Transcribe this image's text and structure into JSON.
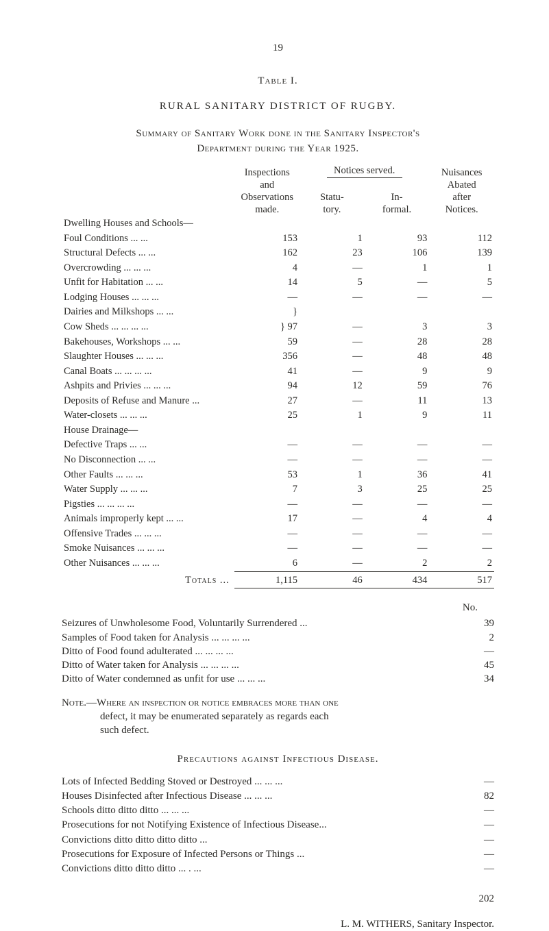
{
  "page_number": "19",
  "table_label": "Table I.",
  "district": "RURAL  SANITARY  DISTRICT  OF  RUGBY.",
  "summary1": "Summary of Sanitary Work done in the Sanitary Inspector's",
  "summary2": "Department during the Year 1925.",
  "headers": {
    "col2_line1": "Inspections",
    "col2_line2": "and",
    "col2_line3": "Observations",
    "col2_line4": "made.",
    "notices_top": "Notices served.",
    "col3_line1": "Statu-",
    "col3_line2": "tory.",
    "col4_line1": "In-",
    "col4_line2": "formal.",
    "col5_line1": "Nuisances",
    "col5_line2": "Abated",
    "col5_line3": "after",
    "col5_line4": "Notices."
  },
  "rows": [
    {
      "label": "Dwelling Houses and Schools—",
      "obs": "",
      "st": "",
      "inf": "",
      "nu": "",
      "indent": 0
    },
    {
      "label": "Foul Conditions        ...      ...",
      "obs": "153",
      "st": "1",
      "inf": "93",
      "nu": "112",
      "indent": 1
    },
    {
      "label": "Structural Defects       ...   ...",
      "obs": "162",
      "st": "23",
      "inf": "106",
      "nu": "139",
      "indent": 1
    },
    {
      "label": "Overcrowding   ...      ...    ...",
      "obs": "4",
      "st": "—",
      "inf": "1",
      "nu": "1",
      "indent": 1
    },
    {
      "label": "Unfit for Habitation     ...   ...",
      "obs": "14",
      "st": "5",
      "inf": "—",
      "nu": "5",
      "indent": 1
    },
    {
      "label": "Lodging Houses       ...     ...   ...",
      "obs": "—",
      "st": "—",
      "inf": "—",
      "nu": "—",
      "indent": 0
    },
    {
      "label": "Dairies and Milkshops       ...   ...",
      "obs": "}",
      "st": "",
      "inf": "",
      "nu": "",
      "indent": 0,
      "brace": true
    },
    {
      "label": "Cow Sheds    ...      ...      ...   ...",
      "obs": "} 97",
      "st": "—",
      "inf": "3",
      "nu": "3",
      "indent": 0,
      "brace": true
    },
    {
      "label": "Bakehouses, Workshops      ...   ...",
      "obs": "59",
      "st": "—",
      "inf": "28",
      "nu": "28",
      "indent": 0
    },
    {
      "label": "Slaughter Houses      ...    ...   ...",
      "obs": "356",
      "st": "—",
      "inf": "48",
      "nu": "48",
      "indent": 0
    },
    {
      "label": "Canal Boats ...     ...      ...   ...",
      "obs": "41",
      "st": "—",
      "inf": "9",
      "nu": "9",
      "indent": 0
    },
    {
      "label": "Ashpits and Privies ...     ...   ...",
      "obs": "94",
      "st": "12",
      "inf": "59",
      "nu": "76",
      "indent": 0
    },
    {
      "label": "Deposits of Refuse and Manure  ...",
      "obs": "27",
      "st": "—",
      "inf": "11",
      "nu": "13",
      "indent": 0
    },
    {
      "label": "Water-closets          ...    ...   ...",
      "obs": "25",
      "st": "1",
      "inf": "9",
      "nu": "11",
      "indent": 0
    },
    {
      "label": "House Drainage—",
      "obs": "",
      "st": "",
      "inf": "",
      "nu": "",
      "indent": 0
    },
    {
      "label": "Defective Traps         ...   ...",
      "obs": "—",
      "st": "—",
      "inf": "—",
      "nu": "—",
      "indent": 1
    },
    {
      "label": "No Disconnection        ...   ...",
      "obs": "—",
      "st": "—",
      "inf": "—",
      "nu": "—",
      "indent": 1
    },
    {
      "label": "Other Faults     ...     ...   ...",
      "obs": "53",
      "st": "1",
      "inf": "36",
      "nu": "41",
      "indent": 1
    },
    {
      "label": "Water Supply          ...    ...   ...",
      "obs": "7",
      "st": "3",
      "inf": "25",
      "nu": "25",
      "indent": 0
    },
    {
      "label": "Pigsties         ...    ...    ...   ...",
      "obs": "—",
      "st": "—",
      "inf": "—",
      "nu": "—",
      "indent": 0
    },
    {
      "label": "Animals improperly kept    ...   ...",
      "obs": "17",
      "st": "—",
      "inf": "4",
      "nu": "4",
      "indent": 0
    },
    {
      "label": "Offensive Trades       ...    ...   ...",
      "obs": "—",
      "st": "—",
      "inf": "—",
      "nu": "—",
      "indent": 0
    },
    {
      "label": "Smoke Nuisances      ...    ...   ...",
      "obs": "—",
      "st": "—",
      "inf": "—",
      "nu": "—",
      "indent": 0
    },
    {
      "label": "Other Nuisances      ...    ...   ...",
      "obs": "6",
      "st": "—",
      "inf": "2",
      "nu": "2",
      "indent": 0
    }
  ],
  "totals": {
    "label": "Totals ...",
    "obs": "1,115",
    "st": "46",
    "inf": "434",
    "nu": "517"
  },
  "no_label": "No.",
  "seizures": [
    {
      "text": "Seizures of Unwholesome Food, Voluntarily Surrendered       ...",
      "val": "39"
    },
    {
      "text": "Samples of Food taken for Analysis         ...      ...      ...    ...",
      "val": "2"
    },
    {
      "text": "Ditto     of Food found adulterated          ...      ...      ...    ...",
      "val": "—"
    },
    {
      "text": "Ditto     of Water taken for Analysis        ...      ...      ...    ...",
      "val": "45"
    },
    {
      "text": "Ditto     of Water condemned as unfit for use   ...      ...    ...",
      "val": "34"
    }
  ],
  "note_line1": "Note.—Where an inspection or notice embraces more than one",
  "note_line2": "defect, it may be enumerated separately as regards each",
  "note_line3": "such defect.",
  "precautions_head": "Precautions against Infectious Disease.",
  "prec_rows": [
    {
      "text": "Lots of Infected Bedding Stoved or Destroyed    ...      ...    ...",
      "val": "—"
    },
    {
      "text": "Houses Disinfected after Infectious Disease        ...     ...    ...",
      "val": "82"
    },
    {
      "text": "Schools     ditto          ditto        ditto             ...      ...    ...",
      "val": "—"
    },
    {
      "text": "Prosecutions for not Notifying Existence of Infectious Disease...",
      "val": "—"
    },
    {
      "text": "Convictions        ditto        ditto        ditto        ditto    ...",
      "val": "—"
    },
    {
      "text": "Prosecutions for Exposure of Infected Persons or Things     ...",
      "val": "—"
    },
    {
      "text": "Convictions        ditto        ditto        ditto          ...   .  ...",
      "val": "—"
    }
  ],
  "sig_num": "202",
  "signature": "L. M. WITHERS, Sanitary Inspector."
}
